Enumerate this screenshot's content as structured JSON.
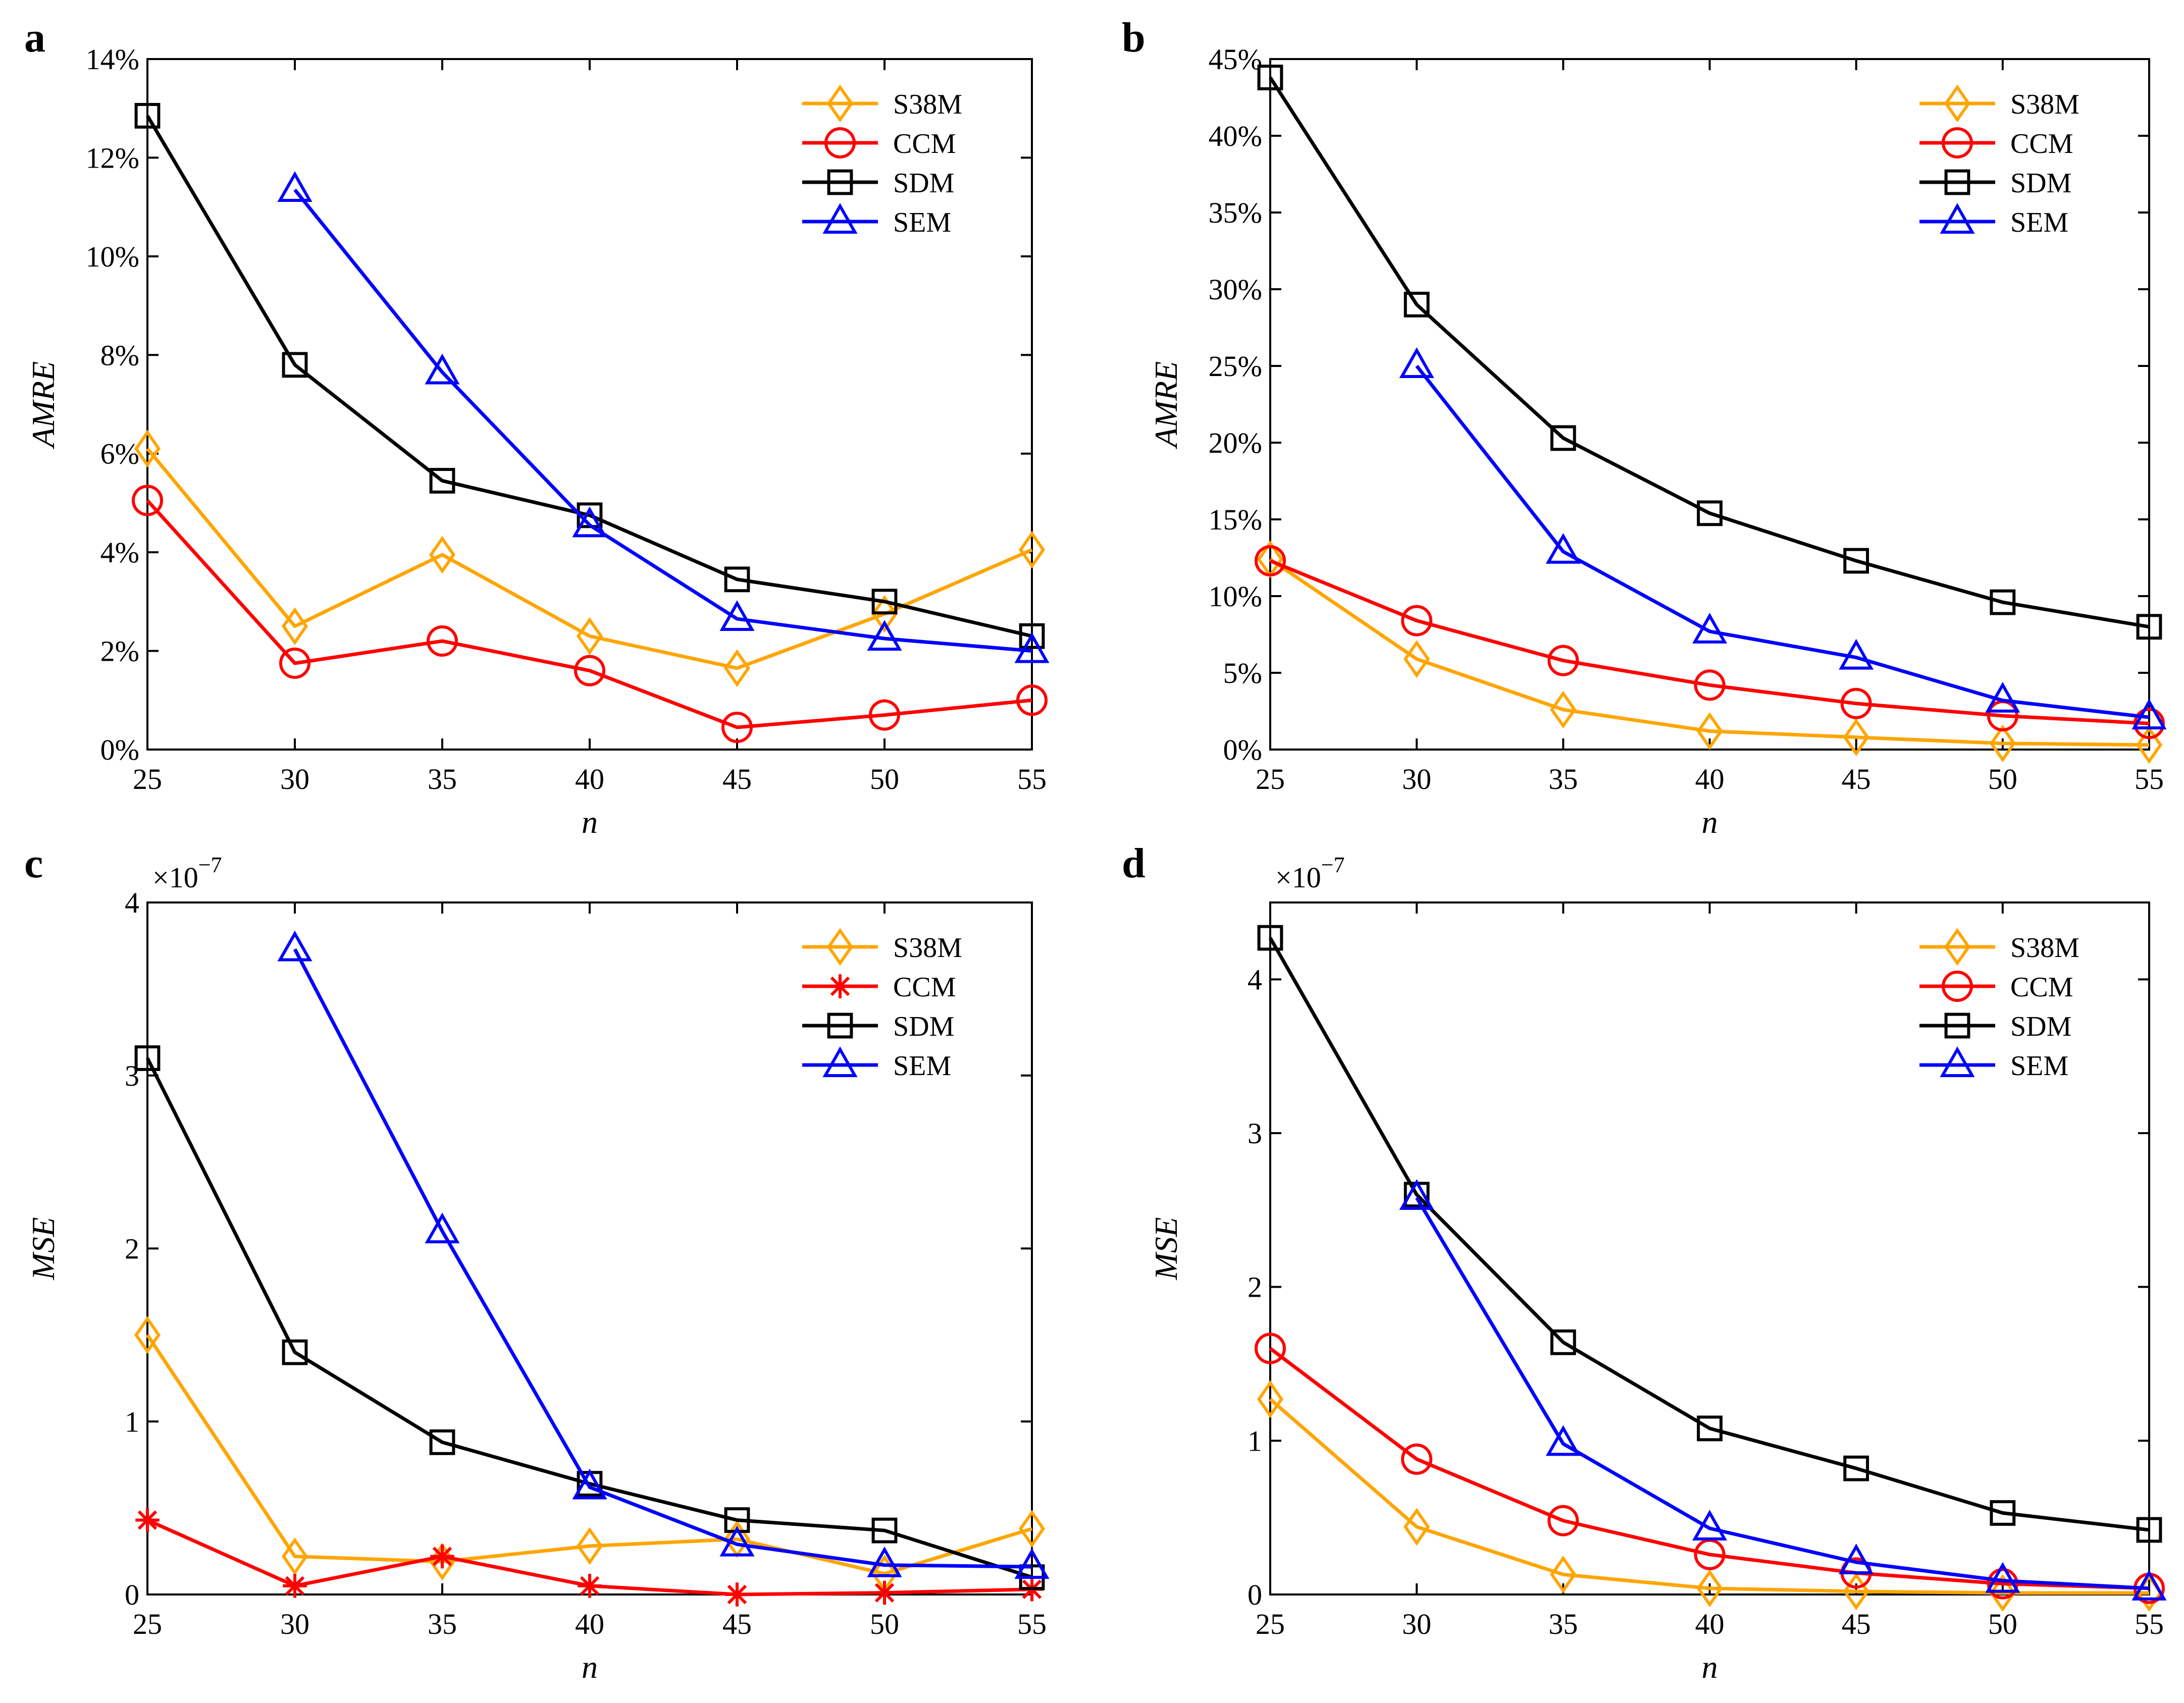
{
  "colors": {
    "S38M": "#FFA500",
    "CCM": "#FF0000",
    "SDM": "#000000",
    "SEM": "#0000FF"
  },
  "chart_data": [
    {
      "panel": "a",
      "type": "line",
      "xlabel": "n",
      "ylabel": "AMRE",
      "x": [
        25,
        30,
        35,
        40,
        45,
        50,
        55
      ],
      "xticks": [
        "25",
        "30",
        "35",
        "40",
        "45",
        "50",
        "55"
      ],
      "ylim": [
        0,
        14
      ],
      "yticks": [
        0,
        2,
        4,
        6,
        8,
        10,
        12,
        14
      ],
      "ytick_labels": [
        "0%",
        "2%",
        "4%",
        "6%",
        "8%",
        "10%",
        "12%",
        "14%"
      ],
      "exponent": "",
      "legend_position": "top-right",
      "series": [
        {
          "name": "S38M",
          "marker": "diamond",
          "values": [
            6.1,
            2.5,
            3.95,
            2.3,
            1.65,
            2.75,
            4.05
          ]
        },
        {
          "name": "CCM",
          "marker": "circle",
          "values": [
            5.05,
            1.75,
            2.2,
            1.6,
            0.45,
            0.7,
            1.0
          ]
        },
        {
          "name": "SDM",
          "marker": "square",
          "values": [
            12.85,
            7.8,
            5.45,
            4.75,
            3.45,
            3.0,
            2.3
          ]
        },
        {
          "name": "SEM",
          "marker": "triangle",
          "values": [
            null,
            11.35,
            7.65,
            4.55,
            2.65,
            2.25,
            2.0
          ]
        }
      ]
    },
    {
      "panel": "b",
      "type": "line",
      "xlabel": "n",
      "ylabel": "AMRE",
      "x": [
        25,
        30,
        35,
        40,
        45,
        50,
        55
      ],
      "xticks": [
        "25",
        "30",
        "35",
        "40",
        "45",
        "50",
        "55"
      ],
      "ylim": [
        0,
        45
      ],
      "yticks": [
        0,
        5,
        10,
        15,
        20,
        25,
        30,
        35,
        40,
        45
      ],
      "ytick_labels": [
        "0%",
        "5%",
        "10%",
        "15%",
        "20%",
        "25%",
        "30%",
        "35%",
        "40%",
        "45%"
      ],
      "exponent": "",
      "legend_position": "top-right",
      "series": [
        {
          "name": "S38M",
          "marker": "diamond",
          "values": [
            12.4,
            5.9,
            2.6,
            1.2,
            0.8,
            0.4,
            0.3
          ]
        },
        {
          "name": "CCM",
          "marker": "circle",
          "values": [
            12.3,
            8.4,
            5.8,
            4.2,
            3.0,
            2.2,
            1.7
          ]
        },
        {
          "name": "SDM",
          "marker": "square",
          "values": [
            43.8,
            29.0,
            20.3,
            15.4,
            12.3,
            9.6,
            8.0
          ]
        },
        {
          "name": "SEM",
          "marker": "triangle",
          "values": [
            null,
            25.0,
            12.9,
            7.7,
            6.0,
            3.2,
            2.1
          ]
        }
      ]
    },
    {
      "panel": "c",
      "type": "line",
      "xlabel": "n",
      "ylabel": "MSE",
      "x": [
        25,
        30,
        35,
        40,
        45,
        50,
        55
      ],
      "xticks": [
        "25",
        "30",
        "35",
        "40",
        "45",
        "50",
        "55"
      ],
      "ylim": [
        0,
        4
      ],
      "yticks": [
        0,
        1,
        2,
        3,
        4
      ],
      "ytick_labels": [
        "0",
        "1",
        "2",
        "3",
        "4"
      ],
      "exponent": "×10",
      "exponent_power": "−7",
      "legend_position": "top-right",
      "series": [
        {
          "name": "S38M",
          "marker": "diamond",
          "values": [
            1.5,
            0.22,
            0.19,
            0.28,
            0.32,
            0.12,
            0.38
          ]
        },
        {
          "name": "CCM",
          "marker": "asterisk",
          "values": [
            0.43,
            0.05,
            0.22,
            0.05,
            0.0,
            0.01,
            0.03
          ]
        },
        {
          "name": "SDM",
          "marker": "square",
          "values": [
            3.1,
            1.4,
            0.88,
            0.64,
            0.43,
            0.37,
            0.1
          ]
        },
        {
          "name": "SEM",
          "marker": "triangle",
          "values": [
            null,
            3.73,
            2.1,
            0.62,
            0.29,
            0.17,
            0.16
          ]
        }
      ]
    },
    {
      "panel": "d",
      "type": "line",
      "xlabel": "n",
      "ylabel": "MSE",
      "x": [
        25,
        30,
        35,
        40,
        45,
        50,
        55
      ],
      "xticks": [
        "25",
        "30",
        "35",
        "40",
        "45",
        "50",
        "55"
      ],
      "ylim": [
        0,
        4.5
      ],
      "yticks": [
        0,
        1,
        2,
        3,
        4
      ],
      "ytick_labels": [
        "0",
        "1",
        "2",
        "3",
        "4"
      ],
      "exponent": "×10",
      "exponent_power": "−7",
      "legend_position": "top-right",
      "series": [
        {
          "name": "S38M",
          "marker": "diamond",
          "values": [
            1.27,
            0.44,
            0.13,
            0.04,
            0.02,
            0.01,
            0.01
          ]
        },
        {
          "name": "CCM",
          "marker": "circle",
          "values": [
            1.6,
            0.88,
            0.48,
            0.26,
            0.14,
            0.07,
            0.04
          ]
        },
        {
          "name": "SDM",
          "marker": "square",
          "values": [
            4.27,
            2.6,
            1.64,
            1.08,
            0.82,
            0.53,
            0.42
          ]
        },
        {
          "name": "SEM",
          "marker": "triangle",
          "values": [
            null,
            2.58,
            0.98,
            0.43,
            0.21,
            0.09,
            0.04
          ]
        }
      ]
    }
  ]
}
